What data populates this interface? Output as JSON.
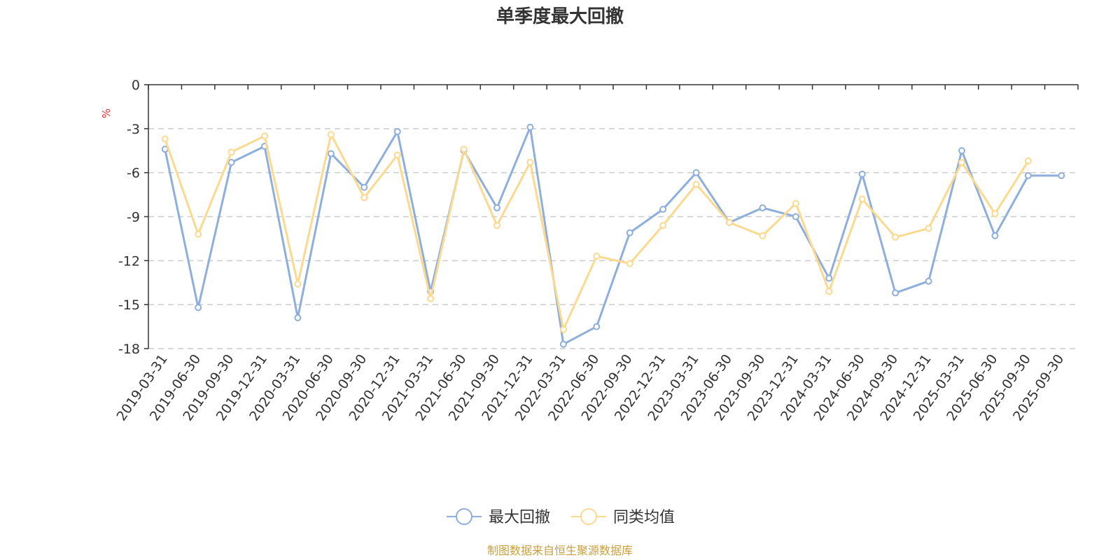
{
  "chart_data": {
    "type": "line",
    "title": "单季度最大回撤",
    "ylabel": "%",
    "ylim": [
      -18,
      0
    ],
    "yticks": [
      0,
      -3,
      -6,
      -9,
      -12,
      -15,
      -18
    ],
    "grid": true,
    "legend_position": "bottom-center",
    "categories": [
      "2019-03-31",
      "2019-06-30",
      "2019-09-30",
      "2019-12-31",
      "2020-03-31",
      "2020-06-30",
      "2020-09-30",
      "2020-12-31",
      "2021-03-31",
      "2021-06-30",
      "2021-09-30",
      "2021-12-31",
      "2022-03-31",
      "2022-06-30",
      "2022-09-30",
      "2022-12-31",
      "2023-03-31",
      "2023-06-30",
      "2023-09-30",
      "2023-12-31",
      "2024-03-31",
      "2024-06-30",
      "2024-09-30",
      "2024-12-31",
      "2025-03-31",
      "2025-06-30",
      "2025-09-30",
      "2025-09-30"
    ],
    "series": [
      {
        "name": "最大回撤",
        "color": "#8eaedc",
        "values": [
          -4.4,
          -15.2,
          -5.3,
          -4.2,
          -15.9,
          -4.7,
          -7.0,
          -3.2,
          -14.1,
          -4.5,
          -8.4,
          -2.9,
          -17.7,
          -16.5,
          -10.1,
          -8.5,
          -6.0,
          -9.4,
          -8.4,
          -9.0,
          -13.2,
          -6.1,
          -14.2,
          -13.4,
          -4.5,
          -10.3,
          -6.2,
          -6.2
        ]
      },
      {
        "name": "同类均值",
        "color": "#fbd98f",
        "values": [
          -3.7,
          -10.2,
          -4.6,
          -3.5,
          -13.6,
          -3.4,
          -7.7,
          -4.8,
          -14.6,
          -4.4,
          -9.6,
          -5.3,
          -16.7,
          -11.7,
          -12.2,
          -9.6,
          -6.8,
          -9.4,
          -10.3,
          -8.1,
          -14.1,
          -7.8,
          -10.4,
          -9.8,
          -5.3,
          -8.8,
          -5.2,
          null
        ]
      }
    ]
  },
  "source_note": "制图数据来自恒生聚源数据库"
}
